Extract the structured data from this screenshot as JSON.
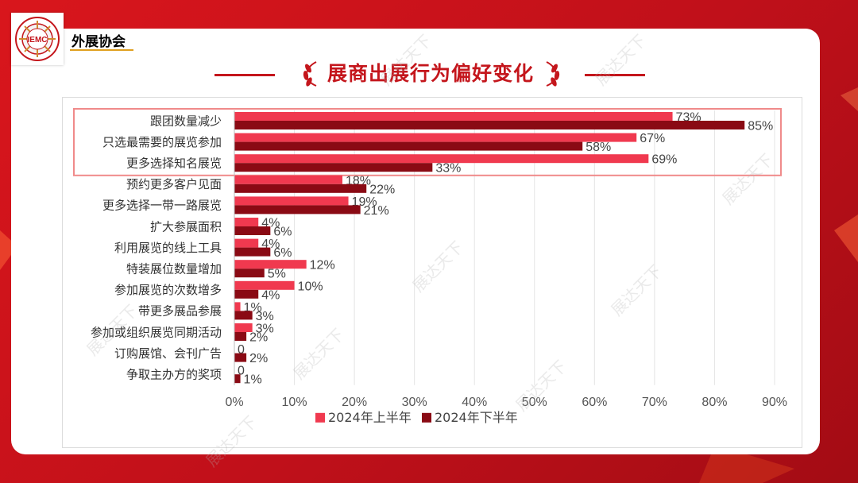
{
  "header": {
    "org_name": "外展协会",
    "logo_text": "IEMC"
  },
  "page_title": "展商出展行为偏好变化",
  "watermark_text": "展达天下",
  "colors": {
    "series1": "#f0394f",
    "series2": "#8a0a14",
    "highlight_box": "#f08a8a",
    "title": "#c4161c"
  },
  "chart_data": {
    "type": "bar",
    "orientation": "horizontal",
    "categories": [
      "跟团数量减少",
      "只选最需要的展览参加",
      "更多选择知名展览",
      "预约更多客户见面",
      "更多选择一带一路展览",
      "扩大参展面积",
      "利用展览的线上工具",
      "特装展位数量增加",
      "参加展览的次数增多",
      "带更多展品参展",
      "参加或组织展览同期活动",
      "订购展馆、会刊广告",
      "争取主办方的奖项"
    ],
    "series": [
      {
        "name": "2024年上半年",
        "values": [
          73,
          67,
          69,
          18,
          19,
          4,
          4,
          12,
          10,
          1,
          3,
          0,
          0
        ],
        "labels": [
          "73%",
          "67%",
          "69%",
          "18%",
          "19%",
          "4%",
          "4%",
          "12%",
          "10%",
          "1%",
          "3%",
          "0",
          "0"
        ]
      },
      {
        "name": "2024年下半年",
        "values": [
          85,
          58,
          33,
          22,
          21,
          6,
          6,
          5,
          4,
          3,
          2,
          2,
          1
        ],
        "labels": [
          "85%",
          "58%",
          "33%",
          "22%",
          "21%",
          "6%",
          "6%",
          "5%",
          "4%",
          "3%",
          "2%",
          "2%",
          "1%"
        ]
      }
    ],
    "xlim": [
      0,
      90
    ],
    "xticks": [
      "0%",
      "10%",
      "20%",
      "30%",
      "40%",
      "50%",
      "60%",
      "70%",
      "80%",
      "90%"
    ],
    "grid": true,
    "legend": "bottom",
    "highlight_categories": [
      0,
      1,
      2
    ]
  }
}
